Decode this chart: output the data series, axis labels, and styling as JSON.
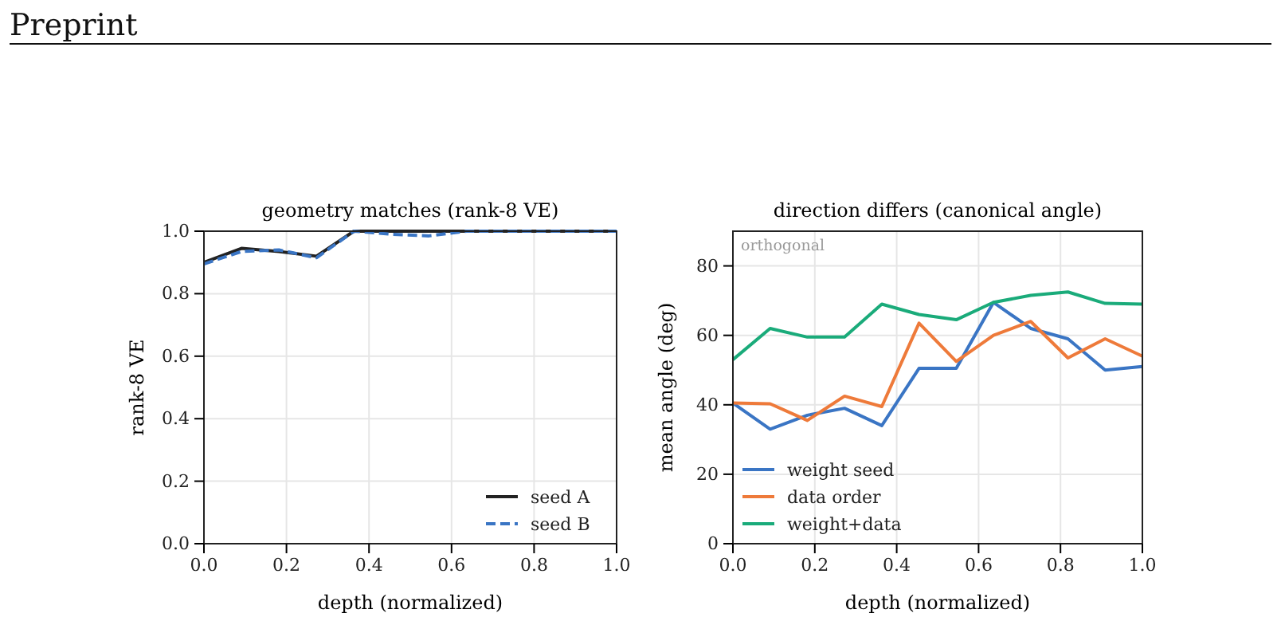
{
  "chart_data": [
    {
      "type": "line",
      "title": "geometry matches (rank-8 VE)",
      "xlabel": "depth (normalized)",
      "ylabel": "rank-8 VE",
      "annotations": [
        "Preprint"
      ],
      "x": [
        0,
        0.0909,
        0.1818,
        0.2727,
        0.3636,
        0.4545,
        0.5455,
        0.6364,
        0.7273,
        0.8182,
        0.9091,
        1.0
      ],
      "xlim": [
        0,
        1
      ],
      "xticks": [
        {
          "value": 0,
          "label": "0.0"
        },
        {
          "value": 0.2,
          "label": "0.2"
        },
        {
          "value": 0.4,
          "label": "0.4"
        },
        {
          "value": 0.6,
          "label": "0.6"
        },
        {
          "value": 0.8,
          "label": "0.8"
        },
        {
          "value": 1,
          "label": "1.0"
        }
      ],
      "ylim": [
        0,
        1
      ],
      "yticks": [
        {
          "value": 0,
          "label": "0.0"
        },
        {
          "value": 0.2,
          "label": "0.2"
        },
        {
          "value": 0.4,
          "label": "0.4"
        },
        {
          "value": 0.6,
          "label": "0.6"
        },
        {
          "value": 0.8,
          "label": "0.8"
        },
        {
          "value": 1,
          "label": "1.0"
        }
      ],
      "grid": true,
      "legend": "bottom right",
      "series": [
        {
          "name": "seed A",
          "color": "#222222",
          "line_style": "solid",
          "values": [
            0.9,
            0.945,
            0.935,
            0.92,
            1.0,
            1.0,
            1.0,
            1.0,
            1.0,
            1.0,
            1.0,
            1.0
          ]
        },
        {
          "name": "seed B",
          "color": "#3a75c4",
          "line_style": "dashed",
          "values": [
            0.895,
            0.935,
            0.94,
            0.915,
            1.0,
            0.99,
            0.985,
            1.0,
            1.0,
            1.0,
            1.0,
            1.0
          ]
        }
      ]
    },
    {
      "type": "line",
      "title": "direction differs (canonical angle)",
      "xlabel": "depth (normalized)",
      "ylabel": "mean angle (deg)",
      "annotations": [
        "orthogonal"
      ],
      "x": [
        0,
        0.0909,
        0.1818,
        0.2727,
        0.3636,
        0.4545,
        0.5455,
        0.6364,
        0.7273,
        0.8182,
        0.9091,
        1.0
      ],
      "xlim": [
        0,
        1
      ],
      "xticks": [
        {
          "value": 0,
          "label": "0.0"
        },
        {
          "value": 0.2,
          "label": "0.2"
        },
        {
          "value": 0.4,
          "label": "0.4"
        },
        {
          "value": 0.6,
          "label": "0.6"
        },
        {
          "value": 0.8,
          "label": "0.8"
        },
        {
          "value": 1,
          "label": "1.0"
        }
      ],
      "ylim": [
        0,
        90
      ],
      "yticks": [
        0,
        20,
        40,
        60,
        80
      ],
      "grid": true,
      "legend": "bottom left",
      "series": [
        {
          "name": "weight seed",
          "color": "#3a75c4",
          "values": [
            40.5,
            33,
            37,
            39,
            34,
            50.5,
            50.5,
            69.5,
            62,
            59,
            50,
            51
          ]
        },
        {
          "name": "data order",
          "color": "#ee7a3a",
          "values": [
            40.5,
            40.3,
            35.5,
            42.5,
            39.5,
            63.5,
            52.5,
            60,
            64,
            53.5,
            59,
            54
          ]
        },
        {
          "name": "weight+data",
          "color": "#1aab7a",
          "values": [
            53,
            62,
            59.5,
            59.5,
            69,
            66,
            64.5,
            69.5,
            71.5,
            72.5,
            69.2,
            69
          ]
        }
      ]
    }
  ]
}
